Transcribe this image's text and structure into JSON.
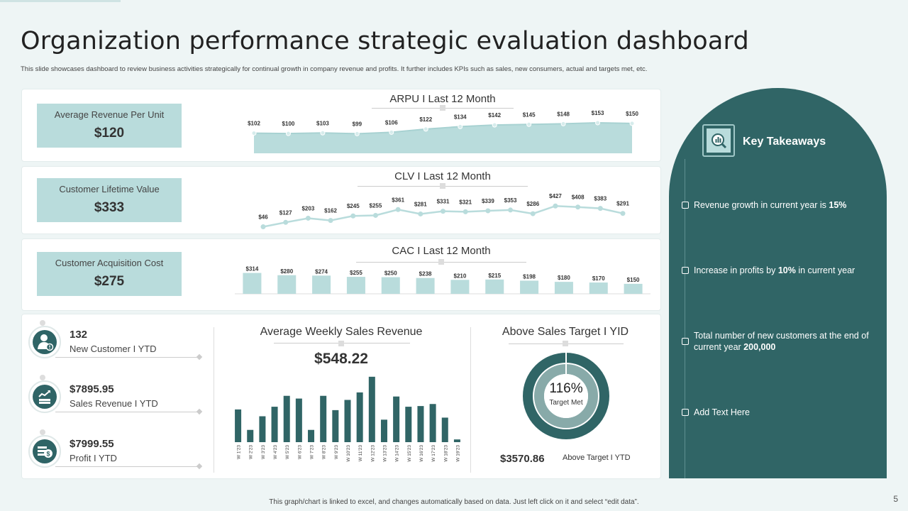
{
  "title": "Organization performance strategic evaluation dashboard",
  "subtitle": "This slide showcases dashboard to review business activities strategically for continual growth in company revenue and profits. It further includes KPIs such as sales, new consumers, actual and targets met, etc.",
  "kpis": [
    {
      "label": "Average  Revenue  Per Unit",
      "value": "$120"
    },
    {
      "label": "Customer Lifetime Value",
      "value": "$333"
    },
    {
      "label": "Customer Acquisition Cost",
      "value": "$275"
    }
  ],
  "chart_data": [
    {
      "type": "area",
      "title": "ARPU I Last 12 Month",
      "values": [
        102,
        100,
        103,
        99,
        106,
        122,
        134,
        142,
        145,
        148,
        153,
        150
      ],
      "labels": [
        "$102",
        "$100",
        "$103",
        "$99",
        "$106",
        "$122",
        "$134",
        "$142",
        "$145",
        "$148",
        "$153",
        "$150"
      ],
      "color": "#b9dcdc"
    },
    {
      "type": "line",
      "title": "CLV I Last 12 Month",
      "values": [
        46,
        127,
        203,
        162,
        245,
        255,
        361,
        281,
        331,
        321,
        339,
        353,
        286,
        427,
        408,
        383,
        291
      ],
      "labels": [
        "$46",
        "$127",
        "$203",
        "$162",
        "$245",
        "$255",
        "$361",
        "$281",
        "$331",
        "$321",
        "$339",
        "$353",
        "$286",
        "$427",
        "$408",
        "$383",
        "$291"
      ],
      "color": "#b9dcdc"
    },
    {
      "type": "bar",
      "title": "CAC I Last 12 Month",
      "values": [
        314,
        280,
        274,
        255,
        250,
        238,
        210,
        215,
        198,
        180,
        170,
        150
      ],
      "labels": [
        "$314",
        "$280",
        "$274",
        "$255",
        "$250",
        "$238",
        "$210",
        "$215",
        "$198",
        "$180",
        "$170",
        "$150"
      ],
      "color": "#b9dcdc"
    },
    {
      "type": "bar",
      "title": "Average Weekly Sales Revenue",
      "headline": "$548.22",
      "categories": [
        "W 1'23",
        "W 2'23",
        "W 3'23",
        "W 4'23",
        "W 5'23",
        "W 6'23",
        "W 7'23",
        "W 8'23",
        "W 9'23",
        "W 10'23",
        "W 11'23",
        "W 12'23",
        "W 13'23",
        "W 14'23",
        "W 15'23",
        "W 16'23",
        "W 17'23",
        "W 18'23",
        "W 19'23"
      ],
      "values": [
        48,
        18,
        38,
        52,
        68,
        64,
        18,
        68,
        47,
        62,
        73,
        96,
        33,
        67,
        52,
        53,
        56,
        36,
        4
      ],
      "color": "#306566"
    },
    {
      "type": "pie",
      "title": "Above Sales Target I YID",
      "center_value": "116%",
      "center_label": "Target Met",
      "percent": 116,
      "colors": {
        "outer": "#306566",
        "inner": "#88aaa9"
      }
    }
  ],
  "above_target": {
    "value": "$3570.86",
    "label": "Above Target I YTD"
  },
  "bottom_kpis": [
    {
      "value": "132",
      "label": "New Customer I YTD"
    },
    {
      "value": "$7895.95",
      "label": "Sales Revenue I YTD"
    },
    {
      "value": "$7999.55",
      "label": "Profit I YTD"
    }
  ],
  "takeaways": {
    "title": "Key Takeaways",
    "items": [
      {
        "text": "Revenue  growth in current year is ",
        "bold": "15%",
        "after": ""
      },
      {
        "text": "Increase in profits by ",
        "bold": "10%",
        "after": " in current year"
      },
      {
        "text": "Total number of new customers at the end of current year ",
        "bold": "200,000",
        "after": ""
      },
      {
        "text": "Add Text Here",
        "bold": "",
        "after": ""
      }
    ]
  },
  "footer": "This graph/chart is linked to excel, and changes automatically based on data. Just left click on it and select “edit data”.",
  "page_number": "5",
  "colors": {
    "primary": "#306566",
    "light": "#b9dcdc",
    "background": "#eef5f5"
  }
}
